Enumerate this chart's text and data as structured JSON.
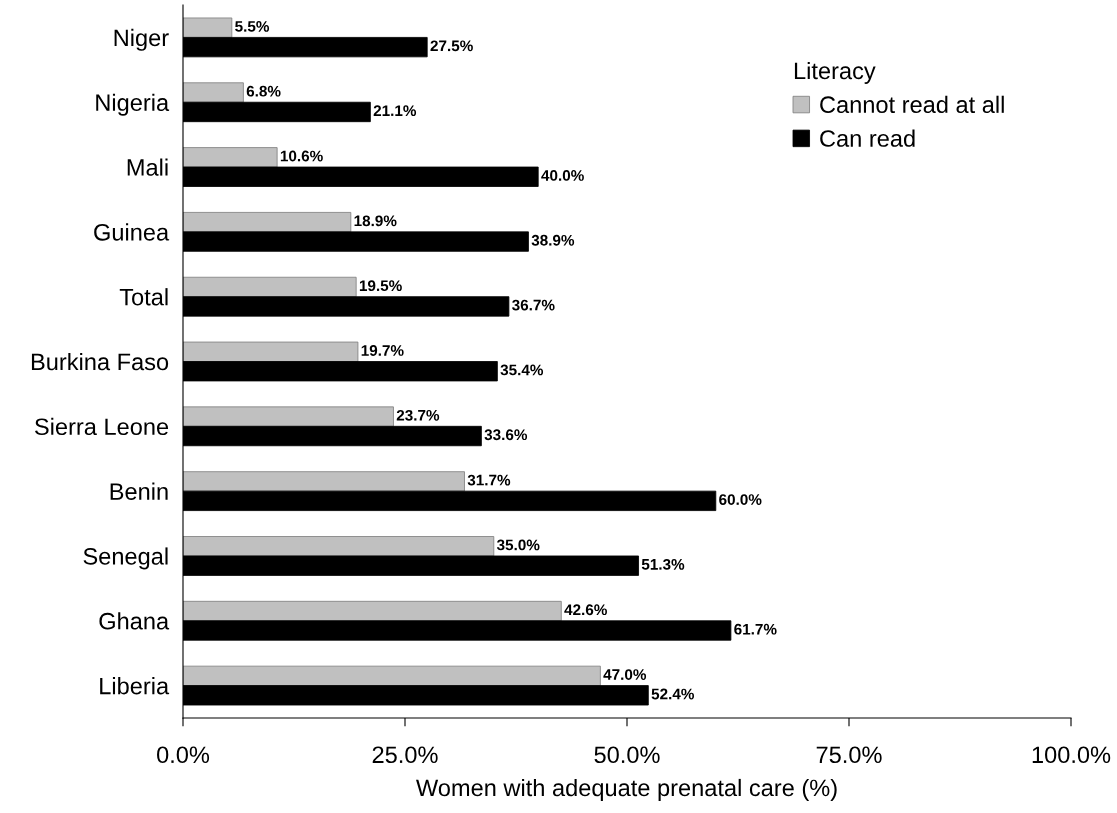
{
  "chart_data": {
    "type": "bar",
    "orientation": "horizontal",
    "xlabel": "Women with adequate prenatal care (%)",
    "legend_title": "Literacy",
    "legend": "top right",
    "grid": false,
    "categories": [
      "Niger",
      "Nigeria",
      "Mali",
      "Guinea",
      "Total",
      "Burkina Faso",
      "Sierra Leone",
      "Benin",
      "Senegal",
      "Ghana",
      "Liberia"
    ],
    "xlim": [
      0,
      100
    ],
    "xticks": [
      {
        "value": 0,
        "label": "0.0%"
      },
      {
        "value": 25,
        "label": "25.0%"
      },
      {
        "value": 50,
        "label": "50.0%"
      },
      {
        "value": 75,
        "label": "75.0%"
      },
      {
        "value": 100,
        "label": "100.0%"
      }
    ],
    "series": [
      {
        "name": "Cannot read at all",
        "color": "#c0c0c0",
        "values": [
          5.5,
          6.8,
          10.6,
          18.9,
          19.5,
          19.7,
          23.7,
          31.7,
          35.0,
          42.6,
          47.0
        ],
        "value_labels": [
          "5.5%",
          "6.8%",
          "10.6%",
          "18.9%",
          "19.5%",
          "19.7%",
          "23.7%",
          "31.7%",
          "35.0%",
          "42.6%",
          "47.0%"
        ]
      },
      {
        "name": "Can read",
        "color": "#000000",
        "values": [
          27.5,
          21.1,
          40.0,
          38.9,
          36.7,
          35.4,
          33.6,
          60.0,
          51.3,
          61.7,
          52.4
        ],
        "value_labels": [
          "27.5%",
          "21.1%",
          "40.0%",
          "38.9%",
          "36.7%",
          "35.4%",
          "33.6%",
          "60.0%",
          "51.3%",
          "61.7%",
          "52.4%"
        ]
      }
    ]
  }
}
